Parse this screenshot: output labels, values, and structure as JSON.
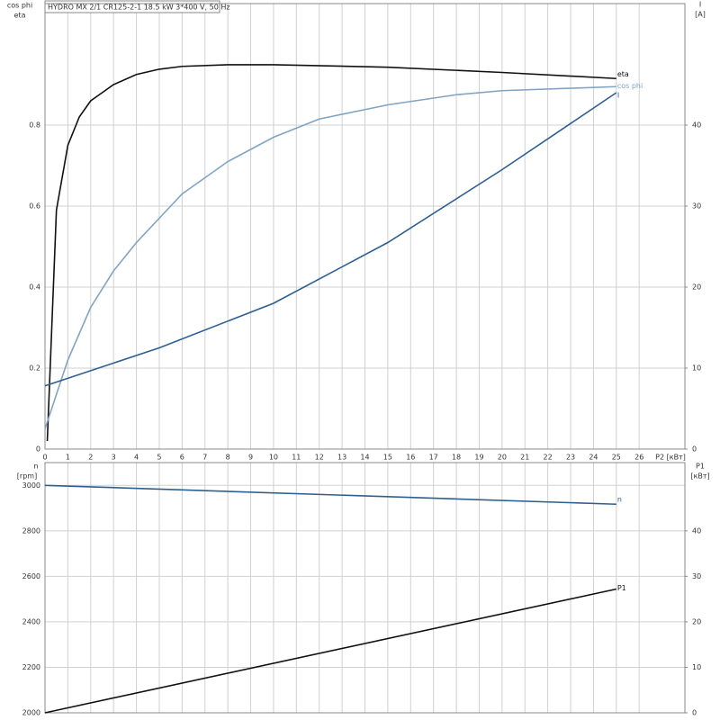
{
  "chart_data": [
    {
      "type": "line",
      "title": "HYDRO MX 2/1 CR125-2-1   18.5 kW   3*400 V, 50 Hz",
      "x_label": "P2 [кВт]",
      "y_label": [
        "cos phi",
        "eta"
      ],
      "y2_label": [
        "I",
        "[A]"
      ],
      "xlim": [
        0,
        28
      ],
      "xticks": [
        0,
        1,
        2,
        3,
        4,
        5,
        6,
        7,
        8,
        9,
        10,
        11,
        12,
        13,
        14,
        15,
        16,
        17,
        18,
        19,
        20,
        21,
        22,
        23,
        24,
        25,
        26
      ],
      "show_x_tick_labels": true,
      "ylim": [
        0,
        1.1
      ],
      "yticks": [
        0,
        0.2,
        0.4,
        0.6,
        0.8
      ],
      "y2lim": [
        0,
        55
      ],
      "y2ticks": [
        0,
        10,
        20,
        30,
        40
      ],
      "grid": true,
      "series": [
        {
          "name": "eta",
          "color": "#111111",
          "x": [
            0.1,
            0.5,
            1,
            1.5,
            2,
            2.5,
            3,
            4,
            5,
            6,
            8,
            10,
            15,
            20,
            25
          ],
          "values": [
            0.02,
            0.59,
            0.75,
            0.82,
            0.86,
            0.88,
            0.9,
            0.925,
            0.938,
            0.945,
            0.949,
            0.949,
            0.943,
            0.93,
            0.915
          ]
        },
        {
          "name": "cos phi",
          "color": "#7fa4c4",
          "x": [
            0,
            1,
            2,
            3,
            4,
            5,
            6,
            8,
            10,
            12,
            15,
            18,
            20,
            25
          ],
          "values": [
            0.05,
            0.22,
            0.35,
            0.44,
            0.51,
            0.57,
            0.63,
            0.71,
            0.77,
            0.815,
            0.85,
            0.875,
            0.885,
            0.895
          ]
        },
        {
          "name": "I",
          "color": "#2d5f92",
          "axis": "y2",
          "x": [
            0,
            5,
            10,
            15,
            20,
            25
          ],
          "values": [
            7.8,
            12.5,
            18,
            25.5,
            34.5,
            44
          ]
        }
      ]
    },
    {
      "type": "line",
      "y_label": [
        "n",
        "[rpm]"
      ],
      "y2_label": [
        "P1",
        "[кВт]"
      ],
      "xlim": [
        0,
        28
      ],
      "xticks": [
        0,
        1,
        2,
        3,
        4,
        5,
        6,
        7,
        8,
        9,
        10,
        11,
        12,
        13,
        14,
        15,
        16,
        17,
        18,
        19,
        20,
        21,
        22,
        23,
        24,
        25,
        26
      ],
      "show_x_tick_labels": false,
      "ylim": [
        2000,
        3100
      ],
      "yticks": [
        2000,
        2200,
        2400,
        2600,
        2800,
        3000
      ],
      "y2lim": [
        0,
        55
      ],
      "y2ticks": [
        0,
        10,
        20,
        30,
        40
      ],
      "grid": true,
      "series": [
        {
          "name": "n",
          "color": "#2d5f92",
          "x": [
            0,
            25
          ],
          "values": [
            3000,
            2917
          ]
        },
        {
          "name": "P1",
          "color": "#111111",
          "axis": "y2",
          "x": [
            0,
            25
          ],
          "values": [
            0,
            27.2
          ]
        }
      ]
    }
  ]
}
